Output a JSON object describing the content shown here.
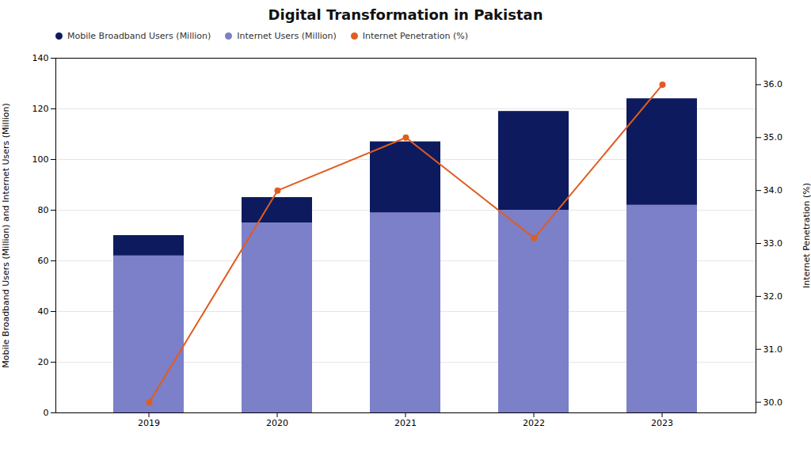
{
  "chart_data": {
    "type": "bar",
    "title": "Digital Transformation in Pakistan",
    "categories": [
      "2019",
      "2020",
      "2021",
      "2022",
      "2023"
    ],
    "series": [
      {
        "name": "Mobile Broadband Users (Million)",
        "type": "bar",
        "color": "#0d1b5e",
        "values": [
          70,
          85,
          107,
          119,
          124
        ]
      },
      {
        "name": "Internet Users (Million)",
        "type": "bar",
        "color": "#7b80c8",
        "values": [
          62,
          75,
          79,
          80,
          82
        ]
      },
      {
        "name": "Internet Penetration (%)",
        "type": "line",
        "axis": "y2",
        "color": "#e05c20",
        "marker": "circle",
        "values": [
          30.0,
          34.0,
          35.0,
          33.1,
          36.0
        ]
      }
    ],
    "ylabel": "Mobile Broadband Users (Million) and Internet Users (Million)",
    "y2label": "Internet Penetration (%)",
    "ylim": [
      0,
      140
    ],
    "yticks": [
      0,
      20,
      40,
      60,
      80,
      100,
      120,
      140
    ],
    "y2lim": [
      29.8,
      36.5
    ],
    "y2ticks": [
      30,
      31,
      32,
      33,
      34,
      35,
      36
    ],
    "grid": true,
    "legend": "upper left"
  }
}
